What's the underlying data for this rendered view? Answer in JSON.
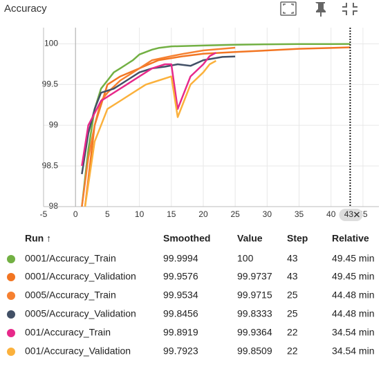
{
  "chart_data": {
    "type": "line",
    "title": "Accuracy",
    "xlim": [
      -5,
      47.5
    ],
    "xticks": [
      -5,
      0,
      5,
      10,
      15,
      20,
      25,
      30,
      35,
      40,
      45
    ],
    "ylim": [
      98,
      100.2
    ],
    "yticks": [
      98,
      98.5,
      99,
      99.5,
      100
    ],
    "grid": true,
    "cursor_x": 43,
    "series": [
      {
        "name": "0001/Accuracy_Train",
        "color": "#72b043",
        "x": [
          1,
          2,
          3,
          4,
          5,
          6,
          7,
          8,
          9,
          10,
          11,
          12,
          13,
          14,
          15,
          20,
          25,
          30,
          35,
          40,
          43
        ],
        "values": [
          98.0,
          98.7,
          99.2,
          99.45,
          99.55,
          99.65,
          99.7,
          99.75,
          99.8,
          99.87,
          99.9,
          99.93,
          99.95,
          99.96,
          99.97,
          99.98,
          99.99,
          99.995,
          99.998,
          99.999,
          99.9994
        ]
      },
      {
        "name": "0001/Accuracy_Validation",
        "color": "#f27522",
        "x": [
          1.5,
          3,
          5,
          7,
          10,
          13,
          17,
          20,
          25,
          30,
          35,
          40,
          43
        ],
        "values": [
          98.0,
          99.0,
          99.5,
          99.6,
          99.7,
          99.8,
          99.85,
          99.88,
          99.9,
          99.92,
          99.94,
          99.95,
          99.9576
        ]
      },
      {
        "name": "0005/Accuracy_Train",
        "color": "#f68030",
        "x": [
          1,
          2,
          3,
          4,
          5,
          7,
          10,
          12,
          15,
          17,
          20,
          25
        ],
        "values": [
          98.0,
          98.6,
          99.0,
          99.3,
          99.4,
          99.55,
          99.7,
          99.8,
          99.85,
          99.88,
          99.92,
          99.9534
        ]
      },
      {
        "name": "0005/Accuracy_Validation",
        "color": "#425066",
        "x": [
          1,
          2,
          3,
          4,
          6,
          8,
          10,
          12,
          14,
          16,
          18,
          20,
          23,
          25
        ],
        "values": [
          98.4,
          98.9,
          99.2,
          99.4,
          99.45,
          99.55,
          99.65,
          99.7,
          99.72,
          99.75,
          99.73,
          99.8,
          99.84,
          99.8456
        ]
      },
      {
        "name": "001/Accuracy_Train",
        "color": "#e7298a",
        "x": [
          1,
          2,
          4,
          6,
          8,
          10,
          12,
          14,
          15,
          16,
          17,
          18,
          20,
          21,
          22
        ],
        "values": [
          98.5,
          99.0,
          99.3,
          99.4,
          99.5,
          99.6,
          99.7,
          99.75,
          99.75,
          99.2,
          99.4,
          99.6,
          99.75,
          99.85,
          99.8919
        ]
      },
      {
        "name": "001/Accuracy_Validation",
        "color": "#fbb13c",
        "x": [
          1.5,
          3,
          5,
          7,
          9,
          11,
          13,
          15,
          16,
          17,
          18,
          20,
          21,
          22
        ],
        "values": [
          98.0,
          98.8,
          99.2,
          99.3,
          99.4,
          99.5,
          99.55,
          99.6,
          99.1,
          99.3,
          99.5,
          99.65,
          99.75,
          99.7923
        ]
      }
    ]
  },
  "table": {
    "columns": [
      "Run ↑",
      "Smoothed",
      "Value",
      "Step",
      "Relative"
    ],
    "rows": [
      [
        "0001/Accuracy_Train",
        99.9994,
        100,
        43,
        "49.45 min"
      ],
      [
        "0001/Accuracy_Validation",
        99.9576,
        99.9737,
        43,
        "49.45 min"
      ],
      [
        "0005/Accuracy_Train",
        99.9534,
        99.9715,
        25,
        "44.48 min"
      ],
      [
        "0005/Accuracy_Validation",
        99.8456,
        99.8333,
        25,
        "44.48 min"
      ],
      [
        "001/Accuracy_Train",
        99.8919,
        99.9364,
        22,
        "34.54 min"
      ],
      [
        "001/Accuracy_Validation",
        99.7923,
        99.8509,
        22,
        "34.54 min"
      ]
    ]
  }
}
